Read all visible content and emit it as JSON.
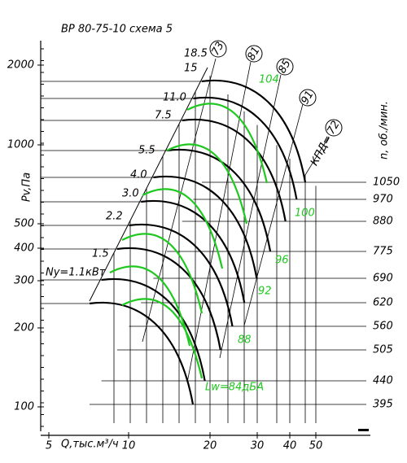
{
  "title": "ВР 80-75-10   схема 5",
  "y_axis": {
    "label": "Pv,Па",
    "ticks": [
      "2000",
      "1000",
      "500",
      "400",
      "300",
      "200",
      "100"
    ]
  },
  "x_axis": {
    "label": "Q,тыс.м³/ч",
    "ticks": [
      "5",
      "10",
      "20",
      "30",
      "40",
      "50"
    ]
  },
  "speed_axis": {
    "label": "n, об./мин.",
    "ticks": [
      "1050",
      "970",
      "880",
      "775",
      "690",
      "620",
      "560",
      "505",
      "440",
      "395"
    ]
  },
  "power_labels": [
    "18.5",
    "15",
    "11.0",
    "7.5",
    "5.5",
    "4.0",
    "3.0",
    "2.2",
    "1.5",
    "Ny=1.1кВт"
  ],
  "noise_labels": [
    "104",
    "100",
    "96",
    "92",
    "88",
    "Lw=84дБА"
  ],
  "efficiency_prefix": "КПД=",
  "efficiency_labels": [
    "73",
    "81",
    "85",
    "91",
    "72"
  ]
}
